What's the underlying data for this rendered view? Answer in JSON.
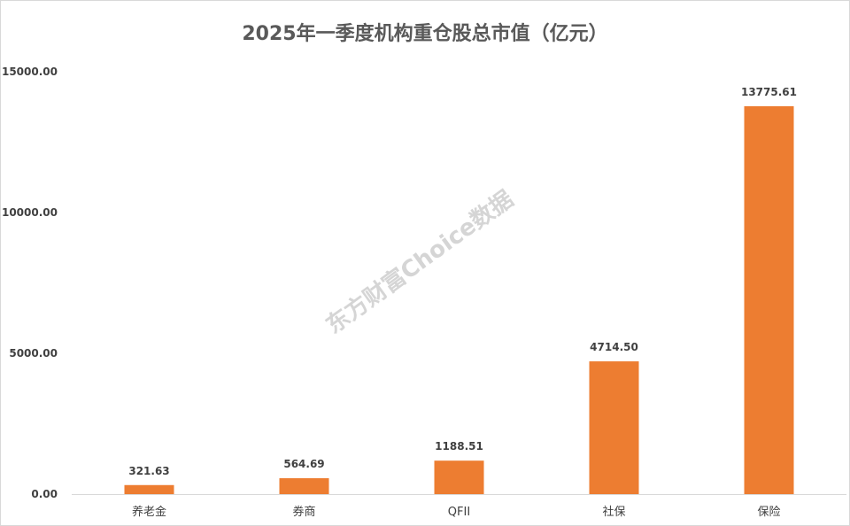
{
  "chart_data": {
    "type": "bar",
    "title": "2025年一季度机构重仓股总市值（亿元）",
    "xlabel": "",
    "ylabel": "",
    "categories": [
      "养老金",
      "券商",
      "QFII",
      "社保",
      "保险"
    ],
    "values": [
      321.63,
      564.69,
      1188.51,
      4714.5,
      13775.61
    ],
    "data_labels": [
      "321.63",
      "564.69",
      "1188.51",
      "4714.50",
      "13775.61"
    ],
    "ylim": [
      0,
      15000
    ],
    "yticks": [
      0,
      5000,
      10000,
      15000
    ],
    "ytick_labels": [
      "0.00",
      "5000.00",
      "10000.00",
      "15000.00"
    ],
    "grid": false,
    "legend": "none",
    "bar_color": "#ED7D31",
    "watermark": "东方财富Choice数据"
  }
}
